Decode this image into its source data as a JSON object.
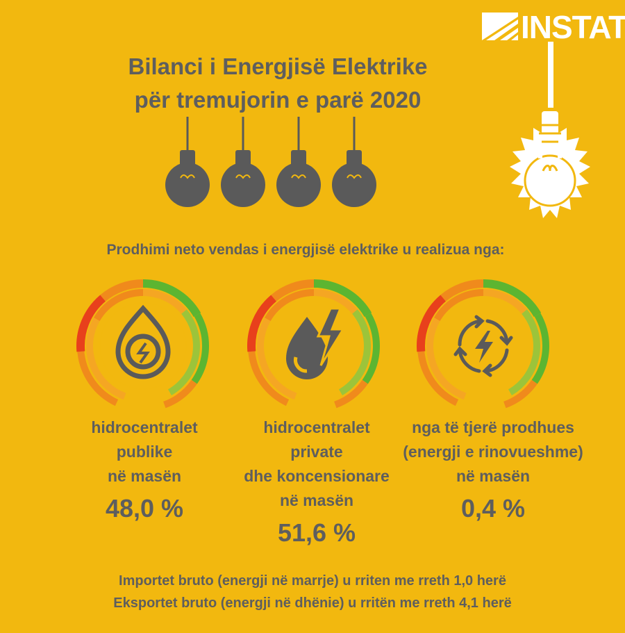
{
  "brand": {
    "name": "INSTAT"
  },
  "title": {
    "line1": "Bilanci i Energjisë Elektrike",
    "line2": "për tremujorin e parë 2020"
  },
  "subtitle": "Prodhimi neto vendas i energjisë elektrike u realizua nga:",
  "sources": [
    {
      "icon": "hydro-drop-icon",
      "line1": "hidrocentralet",
      "line2": "publike",
      "line3": "në masën",
      "line4": "",
      "value": "48,0 %"
    },
    {
      "icon": "lightning-drop-icon",
      "line1": "hidrocentralet",
      "line2": "private",
      "line3": "dhe koncensionare",
      "line4": "në masën",
      "value": "51,6 %"
    },
    {
      "icon": "renewable-cycle-icon",
      "line1": "nga të tjerë prodhues",
      "line2": "(energji e rinovueshme)",
      "line3": "në masën",
      "line4": "",
      "value": "0,4 %"
    }
  ],
  "footer": {
    "line1": "Importet bruto (energji në marrje) u rriten me rreth 1,0 herë",
    "line2": "Eksportet bruto (energji në dhënie) u rritën me rreth 4,1 herë"
  },
  "colors": {
    "background": "#f2b80f",
    "text": "#5e5e5e",
    "gauge_red": "#e8401c",
    "gauge_orange": "#f08a1c",
    "gauge_green": "#5cb531",
    "icon_gray": "#5a5a5a"
  }
}
